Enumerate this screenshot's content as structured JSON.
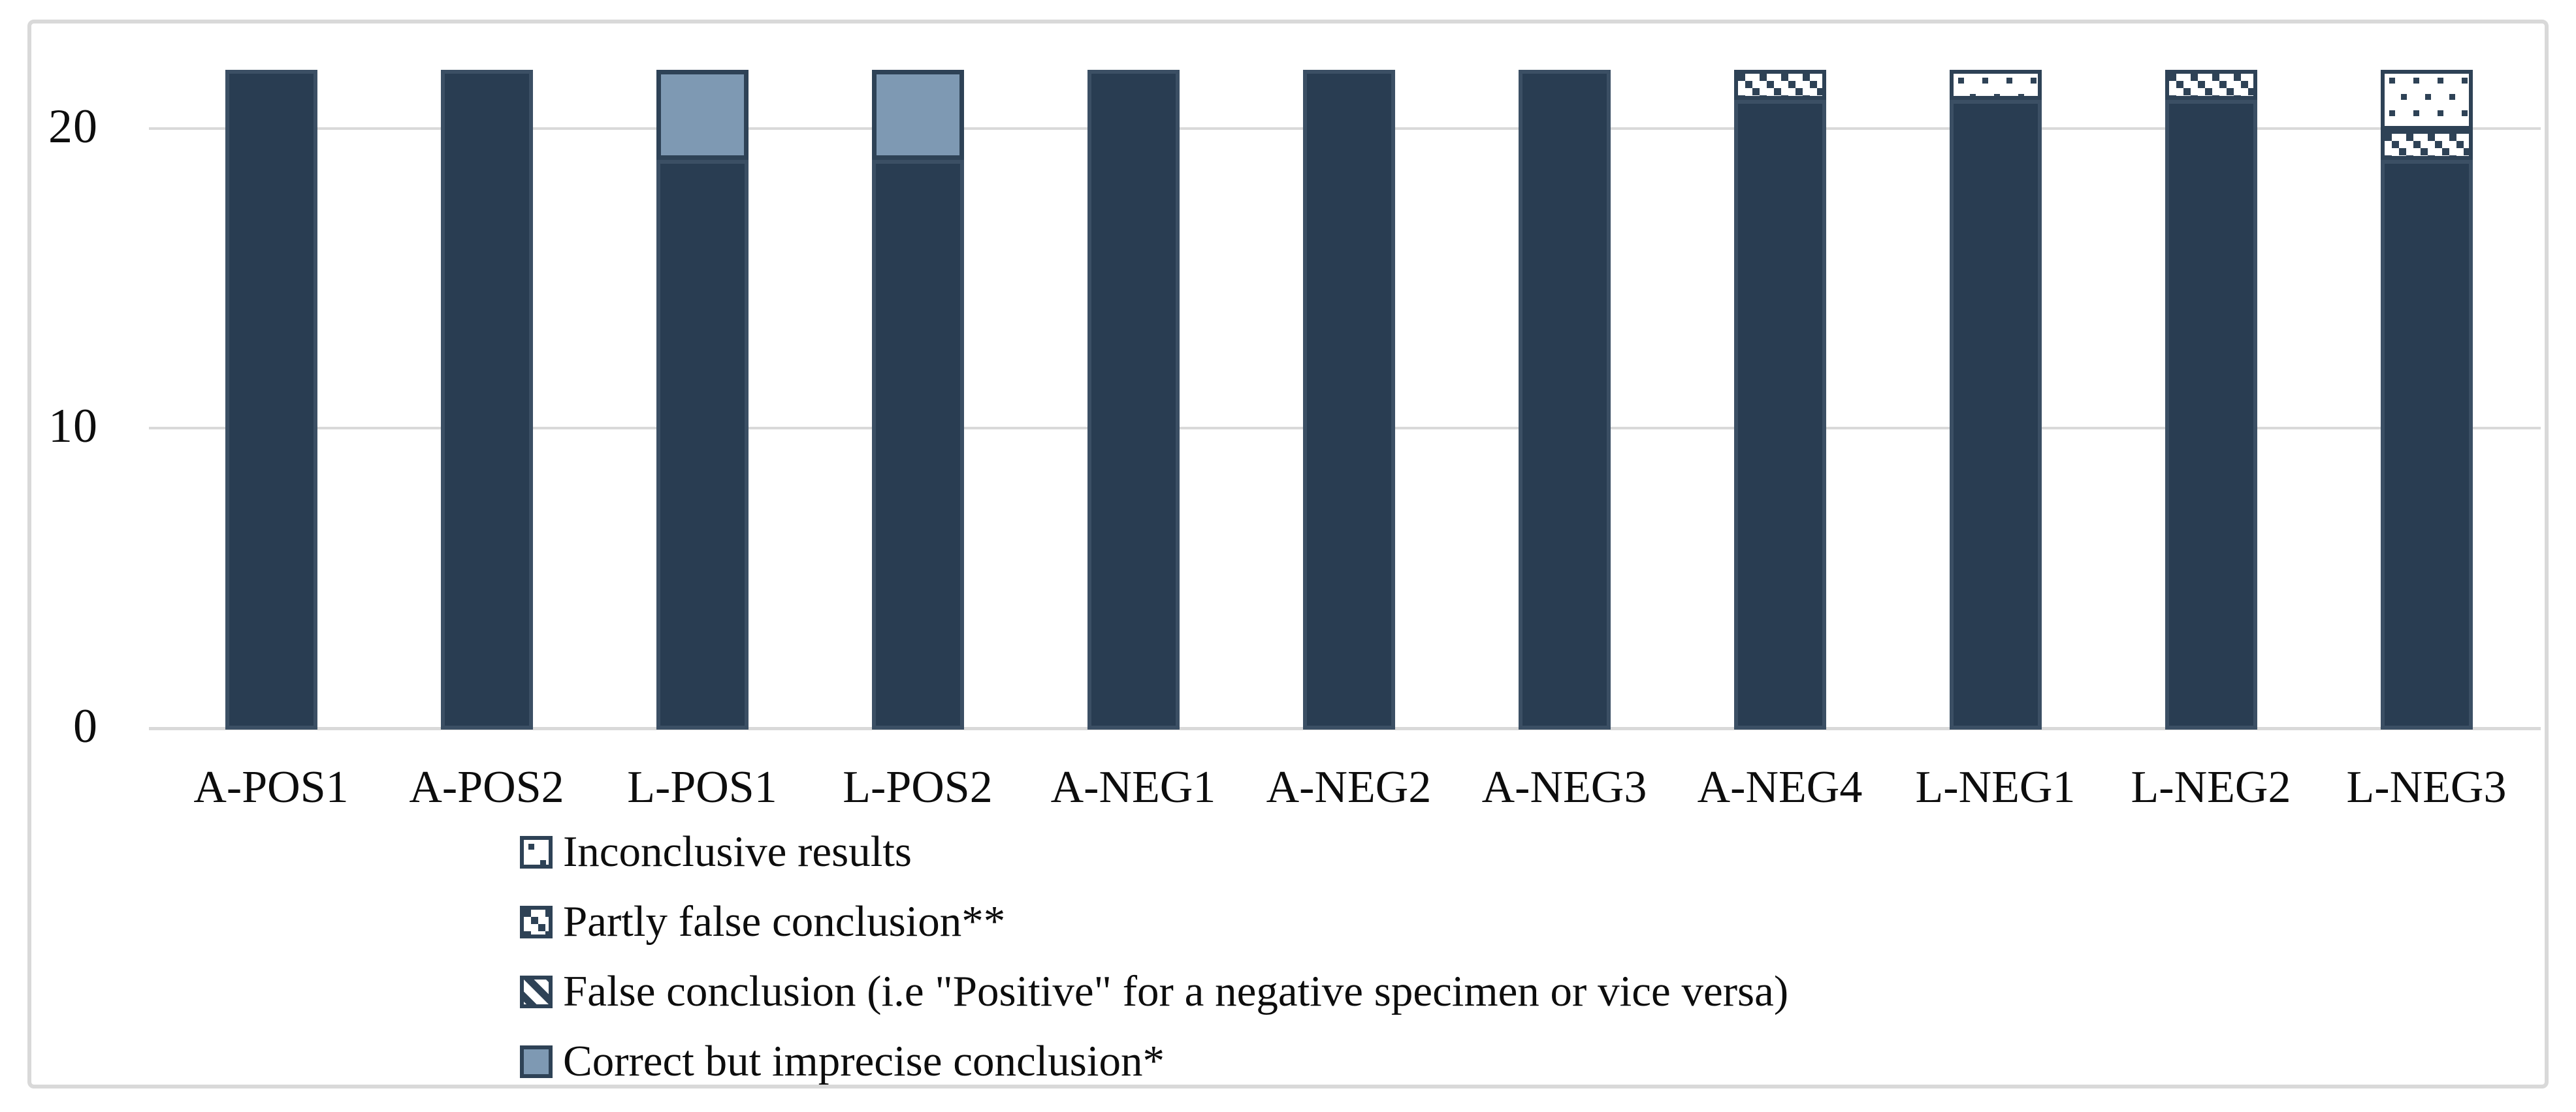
{
  "figure": {
    "background": "#ffffff",
    "frame_color": "#d9d9d9",
    "colors": {
      "dark_bar": "#293d52",
      "dark_bar_border": "#3b4f64",
      "slate_blue": "#7e99b3",
      "pattern_navy": "#2e4256",
      "gridline": "#d9d9d9",
      "text": "#0d0d0d"
    }
  },
  "chart_data": {
    "type": "bar",
    "stacked": true,
    "title": "",
    "xlabel": "",
    "ylabel": "",
    "ylim": [
      0,
      22
    ],
    "yticks": [
      0,
      10,
      20
    ],
    "grid": "horizontal",
    "legend_position": "bottom-left",
    "categories": [
      "A-POS1",
      "A-POS2",
      "L-POS1",
      "L-POS2",
      "A-NEG1",
      "A-NEG2",
      "A-NEG3",
      "A-NEG4",
      "L-NEG1",
      "L-NEG2",
      "L-NEG3"
    ],
    "series": [
      {
        "key": "base",
        "pattern": "solid-dark",
        "values": [
          22,
          22,
          19,
          19,
          22,
          22,
          22,
          21,
          21,
          21,
          19
        ]
      },
      {
        "key": "correct_imprecise",
        "pattern": "solid-light",
        "values": [
          0,
          0,
          3,
          3,
          0,
          0,
          0,
          0,
          0,
          0,
          0
        ]
      },
      {
        "key": "false_conclusion",
        "pattern": "diagonal-stripes",
        "values": [
          0,
          0,
          0,
          0,
          0,
          0,
          0,
          0,
          0,
          0,
          0
        ]
      },
      {
        "key": "partly_false",
        "pattern": "diagonal-checker",
        "values": [
          0,
          0,
          0,
          0,
          0,
          0,
          0,
          1,
          0,
          1,
          1
        ]
      },
      {
        "key": "inconclusive",
        "pattern": "dots",
        "values": [
          0,
          0,
          0,
          0,
          0,
          0,
          0,
          0,
          1,
          0,
          2
        ]
      }
    ],
    "legend": [
      {
        "swatch": "dots",
        "label": "Inconclusive results"
      },
      {
        "swatch": "diagonal-checker",
        "label": "Partly false conclusion**"
      },
      {
        "swatch": "diagonal-stripes",
        "label": "False conclusion (i.e \"Positive\" for a negative specimen or vice versa)"
      },
      {
        "swatch": "solid-light",
        "label": "Correct but imprecise conclusion*"
      }
    ]
  }
}
